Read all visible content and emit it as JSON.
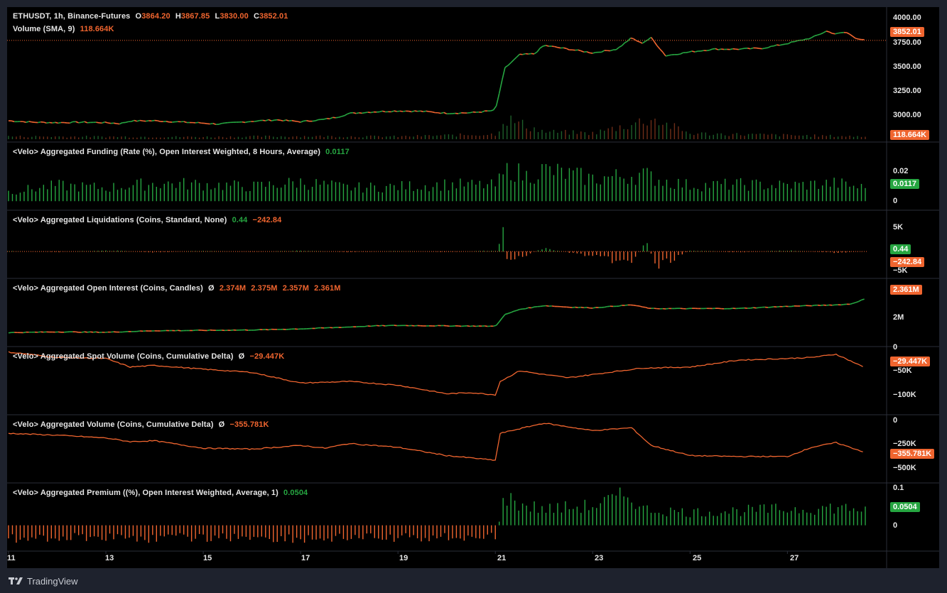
{
  "app": {
    "footer_brand": "TradingView"
  },
  "colors": {
    "background": "#000000",
    "frame": "#1e222d",
    "grid": "#2a2e39",
    "up": "#26a641",
    "down": "#f0652f",
    "text": "#e6e6e6",
    "badge_green": "#26a641",
    "badge_orange": "#f0652f"
  },
  "panes": [
    {
      "id": "price",
      "title": "ETHUSDT, 1h, Binance-Futures",
      "values": [
        {
          "label": "O",
          "value": "3864.20",
          "color": "down"
        },
        {
          "label": "H",
          "value": "3867.85",
          "color": "down"
        },
        {
          "label": "L",
          "value": "3830.00",
          "color": "down"
        },
        {
          "label": "C",
          "value": "3852.01",
          "color": "down"
        }
      ],
      "subtitle": "Volume (SMA, 9)",
      "subtitle_value": "118.664K",
      "axis_ticks": [
        "4000.00",
        "3750.00",
        "3500.00",
        "3250.00",
        "3000.00"
      ],
      "badges": [
        {
          "text": "3852.01",
          "color": "badge_orange"
        },
        {
          "text": "118.664K",
          "color": "badge_orange"
        }
      ]
    },
    {
      "id": "funding",
      "title": "<Velo> Aggregated Funding (Rate (%), Open Interest Weighted, 8 Hours, Average)",
      "value": "0.0117",
      "value_color": "up",
      "axis_ticks": [
        "0.02",
        "0"
      ],
      "badges": [
        {
          "text": "0.0117",
          "color": "badge_green"
        }
      ]
    },
    {
      "id": "liquidations",
      "title": "<Velo> Aggregated Liquidations (Coins, Standard, None)",
      "value": "0.44",
      "value2": "−242.84",
      "axis_ticks": [
        "5K",
        "−5K"
      ],
      "badges": [
        {
          "text": "0.44",
          "color": "badge_green"
        },
        {
          "text": "−242.84",
          "color": "badge_orange"
        }
      ]
    },
    {
      "id": "open_interest",
      "title": "<Velo> Aggregated Open Interest (Coins, Candles)",
      "symbol": "Ø",
      "values": [
        "2.374M",
        "2.375M",
        "2.357M",
        "2.361M"
      ],
      "axis_ticks": [
        "2M"
      ],
      "badges": [
        {
          "text": "2.361M",
          "color": "badge_orange"
        }
      ]
    },
    {
      "id": "spot_cvd",
      "title": "<Velo> Aggregated Spot Volume (Coins, Cumulative Delta)",
      "symbol": "Ø",
      "value": "−29.447K",
      "axis_ticks": [
        "0",
        "−50K",
        "−100K"
      ],
      "badges": [
        {
          "text": "−29.447K",
          "color": "badge_orange"
        }
      ]
    },
    {
      "id": "volume_cvd",
      "title": "<Velo> Aggregated Volume (Coins, Cumulative Delta)",
      "symbol": "Ø",
      "value": "−355.781K",
      "axis_ticks": [
        "0",
        "−250K",
        "−500K"
      ],
      "badges": [
        {
          "text": "−355.781K",
          "color": "badge_orange"
        }
      ]
    },
    {
      "id": "premium",
      "title": "<Velo> Aggregated Premium ((%), Open Interest Weighted, Average, 1)",
      "value": "0.0504",
      "value_color": "up",
      "axis_ticks": [
        "0.1",
        "0"
      ],
      "badges": [
        {
          "text": "0.0504",
          "color": "badge_green"
        }
      ]
    }
  ],
  "x_axis": {
    "ticks": [
      "11",
      "13",
      "15",
      "17",
      "19",
      "21",
      "23",
      "25",
      "27"
    ]
  },
  "chart_data": {
    "type": "line",
    "title": "ETHUSDT, 1h, Binance-Futures",
    "xlabel": "",
    "ylabel": "",
    "x": [
      "11",
      "13",
      "15",
      "17",
      "19",
      "21",
      "23",
      "25",
      "27"
    ],
    "series": [
      {
        "name": "ETHUSDT",
        "pane": "price",
        "ylim": [
          2880,
          4100
        ],
        "points": [
          [
            11,
            3000
          ],
          [
            11.5,
            2985
          ],
          [
            12,
            2980
          ],
          [
            12.5,
            2985
          ],
          [
            13,
            2980
          ],
          [
            13.3,
            2970
          ],
          [
            13.5,
            2998
          ],
          [
            14,
            3000
          ],
          [
            14.5,
            2988
          ],
          [
            15,
            2975
          ],
          [
            15.3,
            2965
          ],
          [
            15.6,
            2978
          ],
          [
            16,
            2995
          ],
          [
            16.5,
            3010
          ],
          [
            17,
            2990
          ],
          [
            17.5,
            3015
          ],
          [
            17.8,
            3045
          ],
          [
            18,
            3078
          ],
          [
            18.5,
            3095
          ],
          [
            19,
            3105
          ],
          [
            19.5,
            3100
          ],
          [
            20,
            3080
          ],
          [
            20.5,
            3085
          ],
          [
            21,
            3110
          ],
          [
            21.2,
            3560
          ],
          [
            21.5,
            3700
          ],
          [
            21.8,
            3710
          ],
          [
            22,
            3800
          ],
          [
            22.5,
            3760
          ],
          [
            23,
            3720
          ],
          [
            23.5,
            3760
          ],
          [
            23.8,
            3880
          ],
          [
            24,
            3820
          ],
          [
            24.2,
            3880
          ],
          [
            24.5,
            3690
          ],
          [
            25,
            3730
          ],
          [
            25.5,
            3760
          ],
          [
            26,
            3760
          ],
          [
            26.5,
            3770
          ],
          [
            27,
            3820
          ],
          [
            27.5,
            3880
          ],
          [
            27.8,
            3950
          ],
          [
            28,
            3920
          ],
          [
            28.2,
            3940
          ],
          [
            28.4,
            3880
          ],
          [
            28.6,
            3852
          ]
        ]
      },
      {
        "name": "Volume",
        "pane": "price_volume",
        "ylim": [
          0,
          1000
        ],
        "points": [
          [
            11,
            120
          ],
          [
            13,
            110
          ],
          [
            15,
            100
          ],
          [
            17,
            130
          ],
          [
            19,
            115
          ],
          [
            21,
            220
          ],
          [
            21.2,
            900
          ],
          [
            22,
            320
          ],
          [
            23,
            260
          ],
          [
            23.8,
            650
          ],
          [
            24.2,
            900
          ],
          [
            25,
            250
          ],
          [
            27,
            170
          ],
          [
            28.6,
            119
          ]
        ]
      },
      {
        "name": "Funding",
        "pane": "funding",
        "ylim": [
          -0.005,
          0.035
        ],
        "points": [
          [
            11,
            0.0085
          ],
          [
            12,
            0.014
          ],
          [
            13,
            0.012
          ],
          [
            14,
            0.016
          ],
          [
            15,
            0.015
          ],
          [
            16,
            0.013
          ],
          [
            17,
            0.017
          ],
          [
            18,
            0.012
          ],
          [
            19,
            0.013
          ],
          [
            20,
            0.015
          ],
          [
            21,
            0.014
          ],
          [
            21.3,
            0.03
          ],
          [
            21.6,
            0.022
          ],
          [
            22,
            0.028
          ],
          [
            23,
            0.02
          ],
          [
            24,
            0.024
          ],
          [
            24.5,
            0.018
          ],
          [
            25,
            0.014
          ],
          [
            26,
            0.015
          ],
          [
            27,
            0.014
          ],
          [
            28,
            0.016
          ],
          [
            28.6,
            0.0117
          ]
        ]
      },
      {
        "name": "Liquidations",
        "pane": "liquidations",
        "ylim": [
          -6000,
          7000
        ],
        "points": [
          [
            11,
            100
          ],
          [
            12,
            -150
          ],
          [
            13,
            300
          ],
          [
            14,
            -200
          ],
          [
            15,
            150
          ],
          [
            16,
            -100
          ],
          [
            17,
            200
          ],
          [
            18,
            -150
          ],
          [
            19,
            100
          ],
          [
            20,
            -120
          ],
          [
            21,
            200
          ],
          [
            21.2,
            6500
          ],
          [
            21.25,
            -3500
          ],
          [
            21.5,
            -1500
          ],
          [
            22,
            800
          ],
          [
            23,
            -1200
          ],
          [
            23.8,
            -3000
          ],
          [
            24.1,
            2500
          ],
          [
            24.3,
            -4000
          ],
          [
            25,
            300
          ],
          [
            26,
            -200
          ],
          [
            27,
            250
          ],
          [
            28,
            -300
          ],
          [
            28.6,
            0.44
          ]
        ]
      },
      {
        "name": "Open Interest",
        "pane": "open_interest",
        "ylim": [
          1800000,
          2500000
        ],
        "points": [
          [
            11,
            1910000
          ],
          [
            12,
            1920000
          ],
          [
            13,
            1915000
          ],
          [
            14,
            1935000
          ],
          [
            15,
            1940000
          ],
          [
            16,
            1945000
          ],
          [
            17,
            1960000
          ],
          [
            18,
            1985000
          ],
          [
            18.5,
            2000000
          ],
          [
            19,
            2005000
          ],
          [
            20,
            2000000
          ],
          [
            21,
            1995000
          ],
          [
            21.2,
            2150000
          ],
          [
            21.5,
            2220000
          ],
          [
            22,
            2270000
          ],
          [
            22.5,
            2250000
          ],
          [
            23,
            2240000
          ],
          [
            23.8,
            2280000
          ],
          [
            24.2,
            2230000
          ],
          [
            25,
            2230000
          ],
          [
            26,
            2232000
          ],
          [
            27,
            2260000
          ],
          [
            28,
            2280000
          ],
          [
            28.3,
            2290000
          ],
          [
            28.6,
            2361000
          ]
        ]
      },
      {
        "name": "Spot CVD",
        "pane": "spot_cvd",
        "ylim": [
          -120000,
          5000
        ],
        "points": [
          [
            11,
            0
          ],
          [
            12,
            -10000
          ],
          [
            13,
            -12000
          ],
          [
            13.5,
            -28000
          ],
          [
            14,
            -25000
          ],
          [
            15,
            -32000
          ],
          [
            16,
            -38000
          ],
          [
            17,
            -58000
          ],
          [
            18,
            -55000
          ],
          [
            19,
            -62000
          ],
          [
            20,
            -78000
          ],
          [
            20.5,
            -76000
          ],
          [
            21,
            -80000
          ],
          [
            21.1,
            -55000
          ],
          [
            21.5,
            -35000
          ],
          [
            22,
            -42000
          ],
          [
            22.5,
            -48000
          ],
          [
            23,
            -42000
          ],
          [
            24,
            -30000
          ],
          [
            25,
            -28000
          ],
          [
            26,
            -15000
          ],
          [
            27,
            -12000
          ],
          [
            27.5,
            -10000
          ],
          [
            28,
            -4000
          ],
          [
            28.6,
            -29447
          ]
        ]
      },
      {
        "name": "Volume CVD",
        "pane": "volume_cvd",
        "ylim": [
          -700000,
          20000
        ],
        "points": [
          [
            11,
            -150000
          ],
          [
            12,
            -170000
          ],
          [
            13,
            -200000
          ],
          [
            13.5,
            -240000
          ],
          [
            14,
            -230000
          ],
          [
            15,
            -310000
          ],
          [
            16,
            -320000
          ],
          [
            17,
            -280000
          ],
          [
            17.5,
            -310000
          ],
          [
            18,
            -260000
          ],
          [
            19,
            -300000
          ],
          [
            20,
            -390000
          ],
          [
            21,
            -440000
          ],
          [
            21.1,
            -150000
          ],
          [
            21.5,
            -100000
          ],
          [
            22,
            -40000
          ],
          [
            22.5,
            -80000
          ],
          [
            23,
            -120000
          ],
          [
            23.8,
            -90000
          ],
          [
            24.2,
            -280000
          ],
          [
            25,
            -390000
          ],
          [
            26,
            -400000
          ],
          [
            27,
            -400000
          ],
          [
            27.5,
            -300000
          ],
          [
            28,
            -250000
          ],
          [
            28.6,
            -355781
          ]
        ]
      },
      {
        "name": "Premium",
        "pane": "premium",
        "ylim": [
          -0.06,
          0.11
        ],
        "points": [
          [
            11,
            -0.04
          ],
          [
            12,
            -0.038
          ],
          [
            13,
            -0.035
          ],
          [
            14,
            -0.04
          ],
          [
            15,
            -0.038
          ],
          [
            16,
            -0.036
          ],
          [
            17,
            -0.042
          ],
          [
            18,
            -0.038
          ],
          [
            19,
            -0.04
          ],
          [
            20,
            -0.036
          ],
          [
            21,
            -0.035
          ],
          [
            21.2,
            0.09
          ],
          [
            21.5,
            0.065
          ],
          [
            22,
            0.05
          ],
          [
            23,
            0.06
          ],
          [
            23.8,
            0.095
          ],
          [
            24,
            0.05
          ],
          [
            25,
            0.04
          ],
          [
            26,
            0.045
          ],
          [
            27,
            0.05
          ],
          [
            28,
            0.055
          ],
          [
            28.6,
            0.0504
          ]
        ]
      }
    ]
  }
}
